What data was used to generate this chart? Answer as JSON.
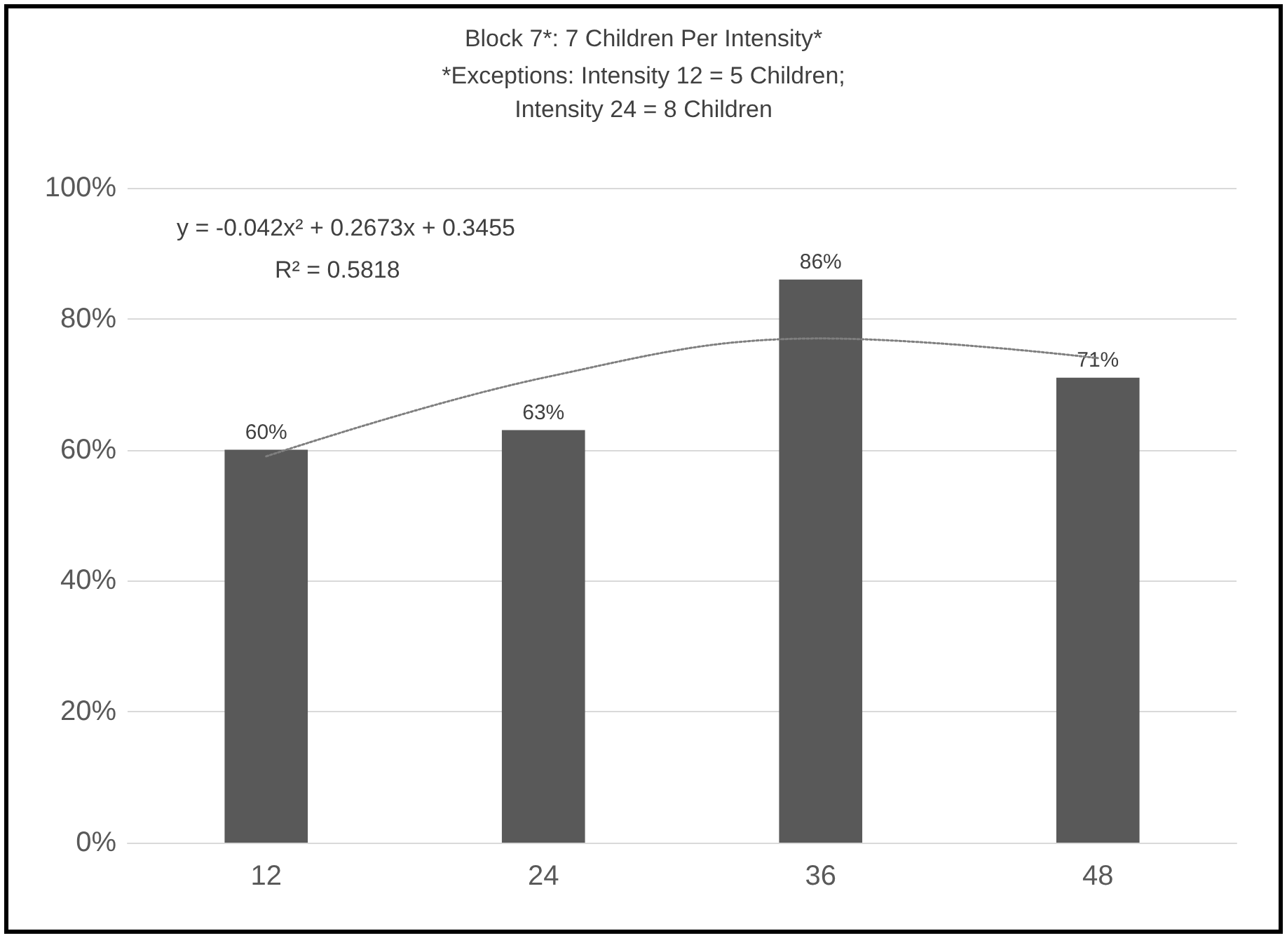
{
  "chart_data": {
    "type": "bar",
    "title": "Block 7*: 7 Children Per Intensity*",
    "subtitle": "*Exceptions: Intensity 12 = 5 Children;\nIntensity 24 = 8 Children",
    "categories": [
      "12",
      "24",
      "36",
      "48"
    ],
    "series": [
      {
        "color": "#595959",
        "values": [
          60,
          63,
          86,
          71
        ],
        "value_labels": [
          "60%",
          "63%",
          "86%",
          "71%"
        ]
      },
      {
        "type": "line",
        "color": "#7f7f7f",
        "line_style": "dotted",
        "marker": "none",
        "x": [
          "12",
          "24",
          "36",
          "48"
        ],
        "values": [
          59,
          71,
          77,
          74
        ]
      }
    ],
    "ylim": [
      0,
      100
    ],
    "yticks": [
      {
        "value": 0,
        "label": "0%"
      },
      {
        "value": 20,
        "label": "20%"
      },
      {
        "value": 40,
        "label": "40%"
      },
      {
        "value": 60,
        "label": "60%"
      },
      {
        "value": 80,
        "label": "80%"
      },
      {
        "value": 100,
        "label": "100%"
      }
    ],
    "grid": "y",
    "annotations": [
      "y = -0.042x² + 0.2673x + 0.3455",
      "R² = 0.5818"
    ]
  }
}
